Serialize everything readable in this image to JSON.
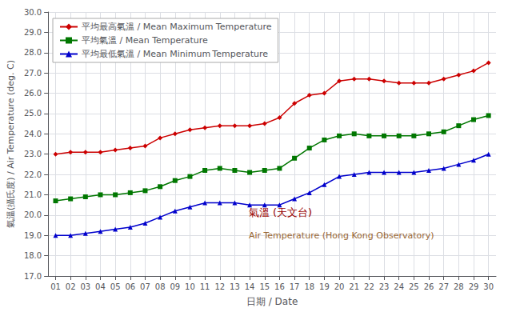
{
  "chart_data": {
    "type": "line",
    "xlabel": "日期 / Date",
    "ylabel": "氣溫(攝氏度) / Air Temperature (deg. C)",
    "x": [
      1,
      2,
      3,
      4,
      5,
      6,
      7,
      8,
      9,
      10,
      11,
      12,
      13,
      14,
      15,
      16,
      17,
      18,
      19,
      20,
      21,
      22,
      23,
      24,
      25,
      26,
      27,
      28,
      29,
      30
    ],
    "series": [
      {
        "name": "平均最高氣溫 / Mean Maximum Temperature",
        "color": "#cc0000",
        "marker": "diamond",
        "values": [
          23.0,
          23.1,
          23.1,
          23.1,
          23.2,
          23.3,
          23.4,
          23.8,
          24.0,
          24.2,
          24.3,
          24.4,
          24.4,
          24.4,
          24.5,
          24.8,
          25.5,
          25.9,
          26.0,
          26.6,
          26.7,
          26.7,
          26.6,
          26.5,
          26.5,
          26.5,
          26.7,
          26.9,
          27.1,
          27.5
        ]
      },
      {
        "name": "平均氣溫 / Mean Temperature",
        "color": "#007700",
        "marker": "square",
        "values": [
          20.7,
          20.8,
          20.9,
          21.0,
          21.0,
          21.1,
          21.2,
          21.4,
          21.7,
          21.9,
          22.2,
          22.3,
          22.2,
          22.1,
          22.2,
          22.3,
          22.8,
          23.3,
          23.7,
          23.9,
          24.0,
          23.9,
          23.9,
          23.9,
          23.9,
          24.0,
          24.1,
          24.4,
          24.7,
          24.9
        ]
      },
      {
        "name": "平均最低氣溫 / Mean Minimum Temperature",
        "color": "#0000cc",
        "marker": "triangle",
        "values": [
          19.0,
          19.0,
          19.1,
          19.2,
          19.3,
          19.4,
          19.6,
          19.9,
          20.2,
          20.4,
          20.6,
          20.6,
          20.6,
          20.5,
          20.5,
          20.5,
          20.8,
          21.1,
          21.5,
          21.9,
          22.0,
          22.1,
          22.1,
          22.1,
          22.1,
          22.2,
          22.3,
          22.5,
          22.7,
          23.0
        ]
      }
    ],
    "xlim": [
      0.5,
      30.5
    ],
    "xticks": [
      {
        "value": 1,
        "label": "01"
      },
      {
        "value": 2,
        "label": "02"
      },
      {
        "value": 3,
        "label": "03"
      },
      {
        "value": 4,
        "label": "04"
      },
      {
        "value": 5,
        "label": "05"
      },
      {
        "value": 6,
        "label": "06"
      },
      {
        "value": 7,
        "label": "07"
      },
      {
        "value": 8,
        "label": "08"
      },
      {
        "value": 9,
        "label": "09"
      },
      {
        "value": 10,
        "label": "10"
      },
      {
        "value": 11,
        "label": "11"
      },
      {
        "value": 12,
        "label": "12"
      },
      {
        "value": 13,
        "label": "13"
      },
      {
        "value": 14,
        "label": "14"
      },
      {
        "value": 15,
        "label": "15"
      },
      {
        "value": 16,
        "label": "16"
      },
      {
        "value": 17,
        "label": "17"
      },
      {
        "value": 18,
        "label": "18"
      },
      {
        "value": 19,
        "label": "19"
      },
      {
        "value": 20,
        "label": "20"
      },
      {
        "value": 21,
        "label": "21"
      },
      {
        "value": 22,
        "label": "22"
      },
      {
        "value": 23,
        "label": "23"
      },
      {
        "value": 24,
        "label": "24"
      },
      {
        "value": 25,
        "label": "25"
      },
      {
        "value": 26,
        "label": "26"
      },
      {
        "value": 27,
        "label": "27"
      },
      {
        "value": 28,
        "label": "28"
      },
      {
        "value": 29,
        "label": "29"
      },
      {
        "value": 30,
        "label": "30"
      }
    ],
    "ylim": [
      17.0,
      30.0
    ],
    "yticks": [
      {
        "value": 17.0,
        "label": "17.0"
      },
      {
        "value": 18.0,
        "label": "18.0"
      },
      {
        "value": 19.0,
        "label": "19.0"
      },
      {
        "value": 20.0,
        "label": "20.0"
      },
      {
        "value": 21.0,
        "label": "21.0"
      },
      {
        "value": 22.0,
        "label": "22.0"
      },
      {
        "value": 23.0,
        "label": "23.0"
      },
      {
        "value": 24.0,
        "label": "24.0"
      },
      {
        "value": 25.0,
        "label": "25.0"
      },
      {
        "value": 26.0,
        "label": "26.0"
      },
      {
        "value": 27.0,
        "label": "27.0"
      },
      {
        "value": 28.0,
        "label": "28.0"
      },
      {
        "value": 29.0,
        "label": "29.0"
      },
      {
        "value": 30.0,
        "label": "30.0"
      }
    ],
    "grid": true,
    "legend": "upper left",
    "annotations": [
      {
        "text": "氣溫 (天文台)",
        "color": "#990000"
      },
      {
        "text": "Air Temperature (Hong Kong Observatory)",
        "color": "#996633"
      }
    ]
  }
}
